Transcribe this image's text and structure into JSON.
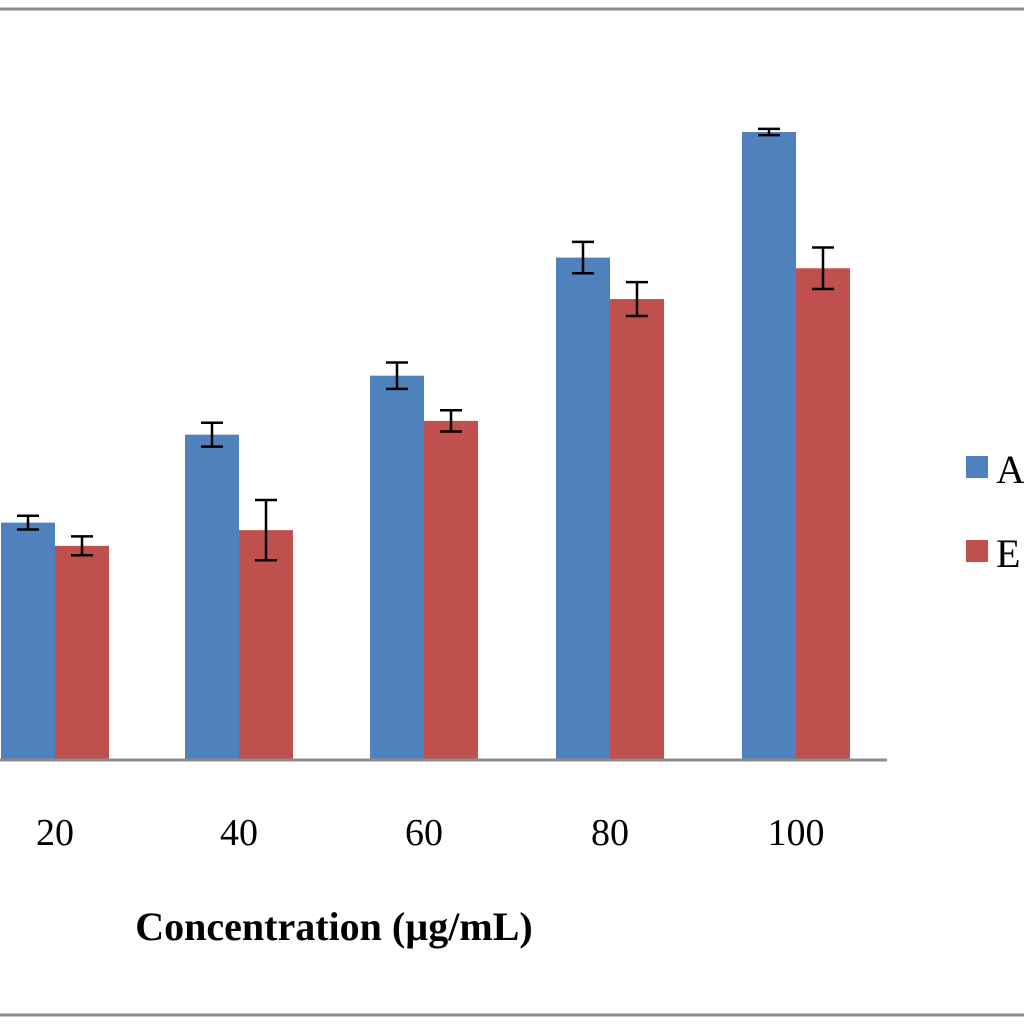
{
  "chart_data": {
    "type": "bar",
    "xlabel": "Concentration (µg/mL)",
    "ylabel": "",
    "categories": [
      "20",
      "40",
      "60",
      "80",
      "100"
    ],
    "series": [
      {
        "name": "A",
        "color": "#4F81BD",
        "values": [
          37.8,
          51.8,
          61.2,
          80.0,
          100.0
        ],
        "errors": [
          1.1,
          1.9,
          2.1,
          2.5,
          0.5
        ]
      },
      {
        "name": "E",
        "color": "#C0504D",
        "values": [
          34.1,
          36.6,
          54.0,
          73.4,
          78.3
        ],
        "errors": [
          1.5,
          4.8,
          1.7,
          2.7,
          3.3
        ]
      }
    ],
    "ylim": [
      0,
      120
    ],
    "grid": false,
    "legend": "right"
  }
}
